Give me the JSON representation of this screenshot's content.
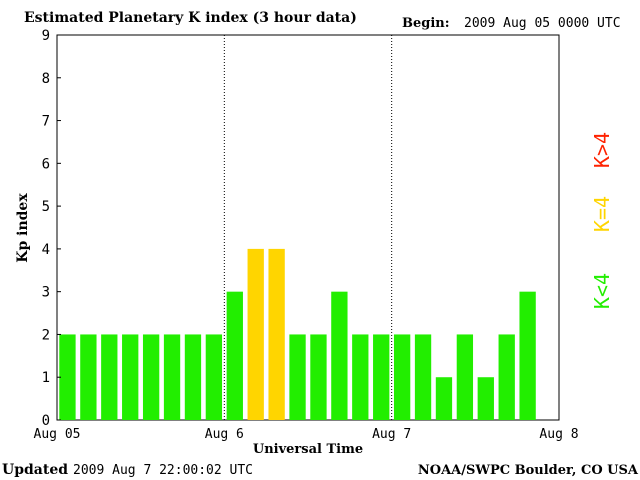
{
  "header": {
    "title": "Estimated Planetary K index (3 hour data)",
    "begin_label": "Begin:",
    "begin_value": "2009 Aug 05 0000 UTC"
  },
  "footer": {
    "updated_label": "Updated",
    "updated_value": "2009 Aug  7 22:00:02 UTC",
    "source": "NOAA/SWPC Boulder, CO USA"
  },
  "legend": {
    "below": "K<4",
    "equal": "K=4",
    "above": "K>4"
  },
  "colors": {
    "below": "#22ee00",
    "equal": "#ffd500",
    "above": "#ff2200",
    "axis": "#000000",
    "frame": "#000000"
  },
  "chart_data": {
    "type": "bar",
    "title": "Estimated Planetary K index (3 hour data)",
    "xlabel": "Universal Time",
    "ylabel": "Kp index",
    "ylim": [
      0,
      9
    ],
    "yticks": [
      "0",
      "1",
      "2",
      "3",
      "4",
      "5",
      "6",
      "7",
      "8",
      "9"
    ],
    "xticks": [
      "Aug 05",
      "Aug 6",
      "Aug 7",
      "Aug 8"
    ],
    "day_separators": [
      "Aug 6",
      "Aug 7"
    ],
    "interval_hours": 3,
    "values": [
      2,
      2,
      2,
      2,
      2,
      2,
      2,
      2,
      3,
      4,
      4,
      2,
      2,
      3,
      2,
      2,
      2,
      2,
      1,
      2,
      1,
      2,
      3
    ]
  }
}
